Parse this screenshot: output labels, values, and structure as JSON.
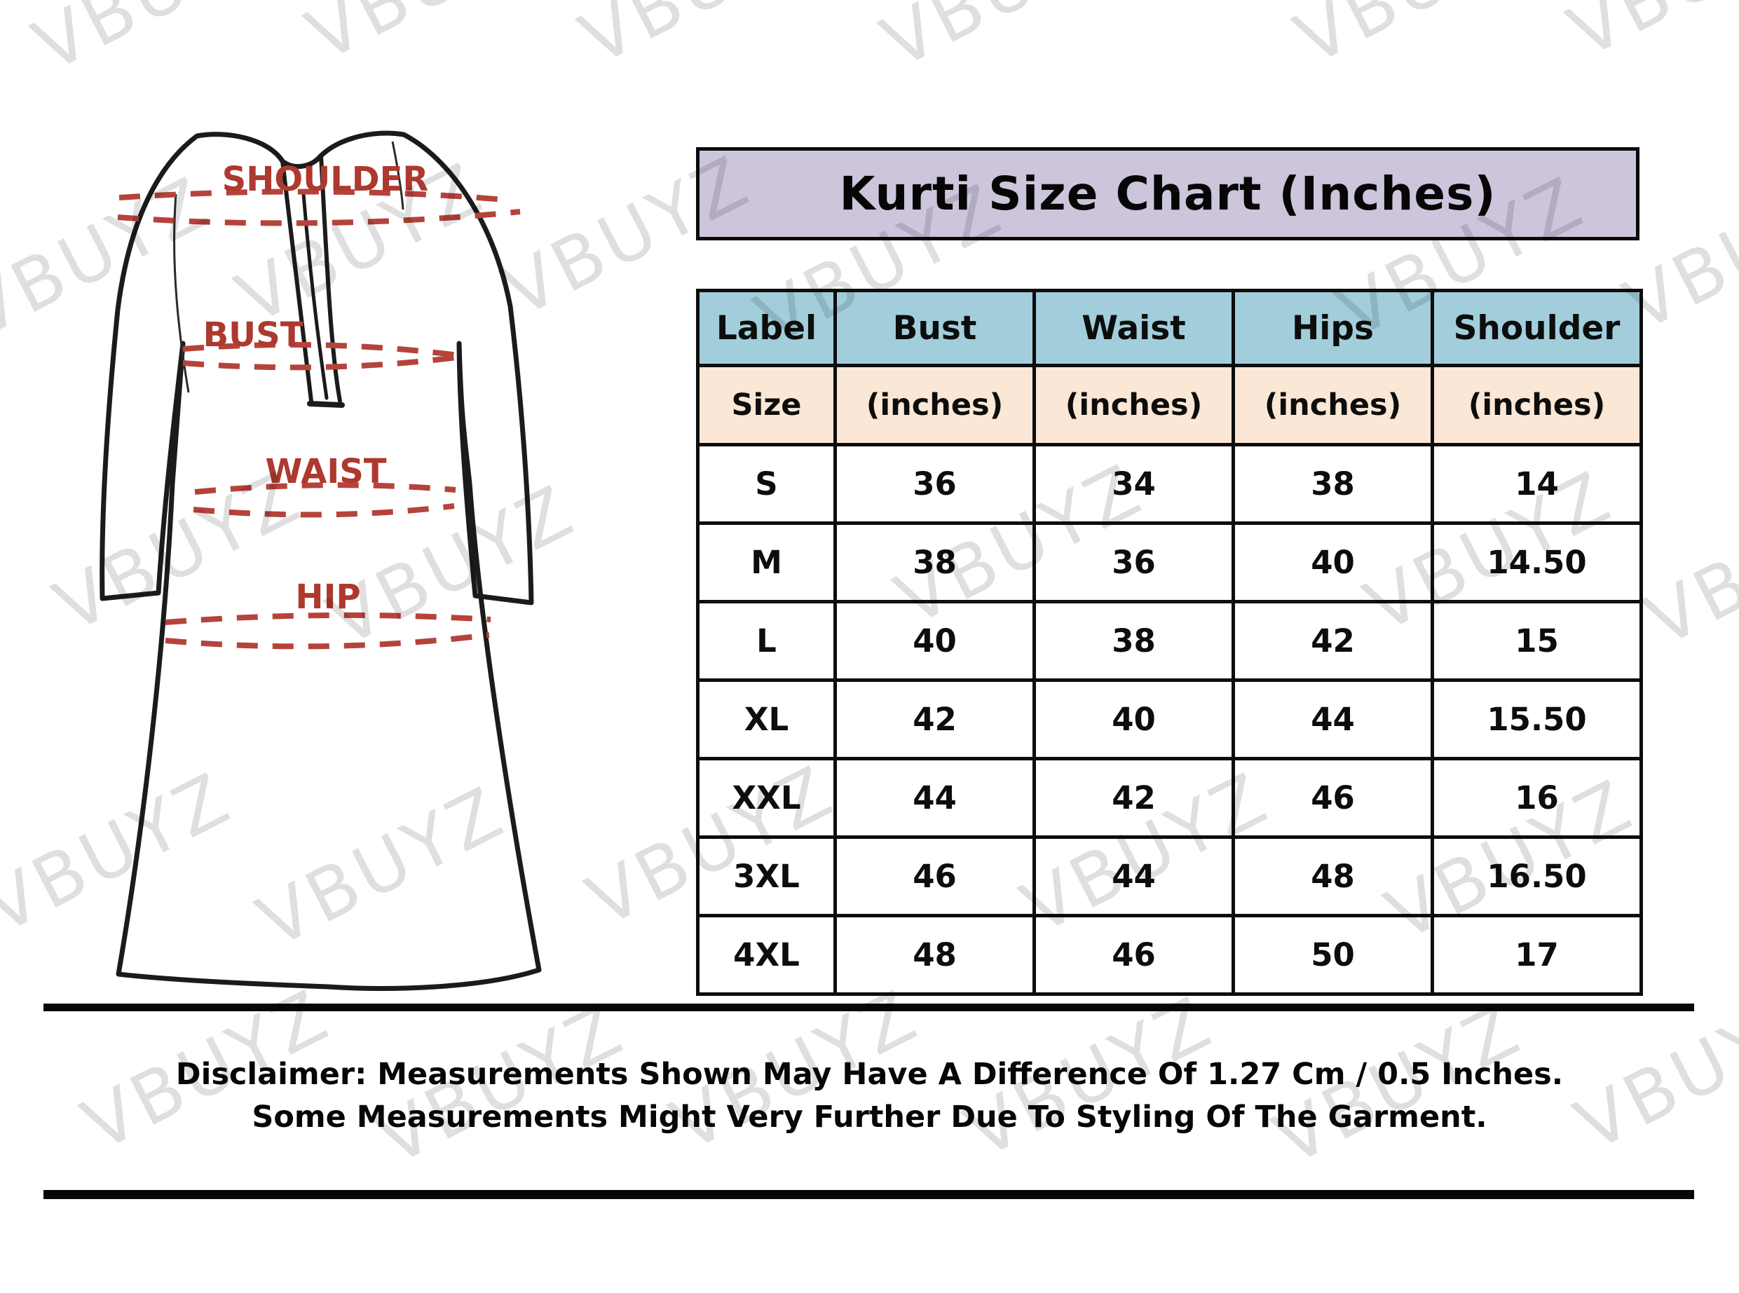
{
  "watermark": {
    "text": "VBUYZ",
    "color": "#d9d9d9"
  },
  "garment": {
    "labels": {
      "shoulder": "SHOULDER",
      "bust": "BUST",
      "waist": "WAIST",
      "hip": "HIP"
    },
    "label_color": "#ad392f",
    "dash_color": "#b5433b",
    "outline_color": "#1b1b1b"
  },
  "title": {
    "text": "Kurti Size Chart (Inches)",
    "bg_color": "#cdc5dc"
  },
  "table": {
    "header": {
      "bg_color": "#a2cedc",
      "labels": [
        "Label",
        "Bust",
        "Waist",
        "Hips",
        "Shoulder"
      ]
    },
    "subheader": {
      "bg_color": "#fbe7d5",
      "labels": [
        "Size",
        "(inches)",
        "(inches)",
        "(inches)",
        "(inches)"
      ]
    },
    "rows": [
      {
        "size": "S",
        "bust": "36",
        "waist": "34",
        "hips": "38",
        "shoulder": "14"
      },
      {
        "size": "M",
        "bust": "38",
        "waist": "36",
        "hips": "40",
        "shoulder": "14.50"
      },
      {
        "size": "L",
        "bust": "40",
        "waist": "38",
        "hips": "42",
        "shoulder": "15"
      },
      {
        "size": "XL",
        "bust": "42",
        "waist": "40",
        "hips": "44",
        "shoulder": "15.50"
      },
      {
        "size": "XXL",
        "bust": "44",
        "waist": "42",
        "hips": "46",
        "shoulder": "16"
      },
      {
        "size": "3XL",
        "bust": "46",
        "waist": "44",
        "hips": "48",
        "shoulder": "16.50"
      },
      {
        "size": "4XL",
        "bust": "48",
        "waist": "46",
        "hips": "50",
        "shoulder": "17"
      }
    ]
  },
  "disclaimer": {
    "line1": "Disclaimer: Measurements Shown May Have A Difference Of 1.27 Cm / 0.5 Inches.",
    "line2": "Some Measurements Might Very Further Due To Styling Of The Garment."
  },
  "chart_data": {
    "type": "table",
    "title": "Kurti Size Chart (Inches)",
    "columns": [
      "Label Size",
      "Bust (inches)",
      "Waist (inches)",
      "Hips (inches)",
      "Shoulder (inches)"
    ],
    "rows": [
      [
        "S",
        36,
        34,
        38,
        14
      ],
      [
        "M",
        38,
        36,
        40,
        14.5
      ],
      [
        "L",
        40,
        38,
        42,
        15
      ],
      [
        "XL",
        42,
        40,
        44,
        15.5
      ],
      [
        "XXL",
        44,
        42,
        46,
        16
      ],
      [
        "3XL",
        46,
        44,
        48,
        16.5
      ],
      [
        "4XL",
        48,
        46,
        50,
        17
      ]
    ],
    "notes": [
      "Disclaimer: Measurements Shown May Have A Difference Of 1.27 Cm / 0.5 Inches.",
      "Some Measurements Might Very Further Due To Styling Of The Garment."
    ]
  }
}
